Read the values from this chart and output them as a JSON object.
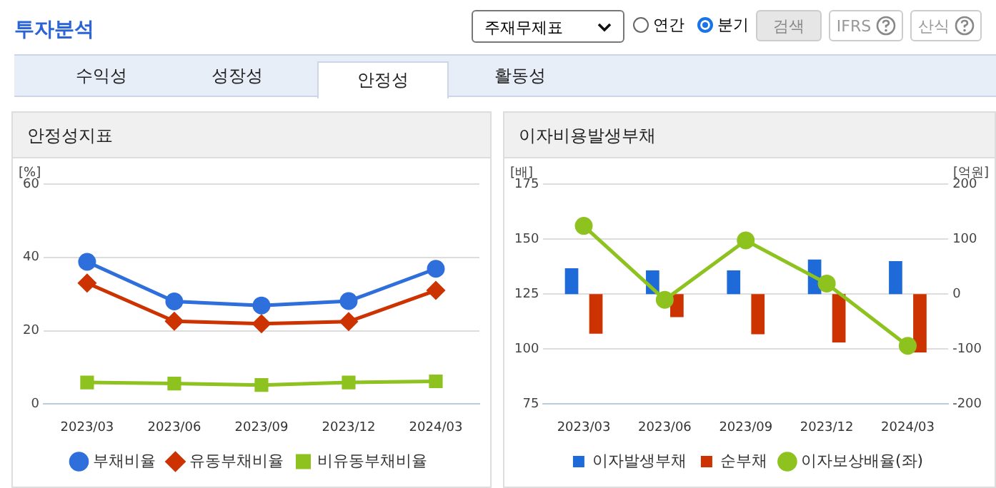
{
  "chart_data": [
    {
      "type": "line",
      "title": "안정성지표",
      "ylabel": "[%]",
      "categories": [
        "2023/03",
        "2023/06",
        "2023/09",
        "2023/12",
        "2024/03"
      ],
      "series": [
        {
          "name": "부채비율",
          "color": "#2f6fdb",
          "marker": "circle",
          "values": [
            38.8,
            28,
            26.9,
            28.1,
            36.9
          ]
        },
        {
          "name": "유동부채비율",
          "color": "#cc3300",
          "marker": "diamond",
          "values": [
            33,
            22.6,
            21.9,
            22.5,
            31
          ]
        },
        {
          "name": "비유동부채비율",
          "color": "#8dc21f",
          "marker": "square",
          "values": [
            5.9,
            5.6,
            5.2,
            5.9,
            6.2
          ]
        }
      ],
      "ylim": [
        0,
        60
      ],
      "yticks": [
        0,
        20,
        40,
        60
      ],
      "grid": "y",
      "legend": "bottom",
      "annotations": [
        "투자분석",
        "주재무제표",
        "연간",
        "분기",
        "검색",
        "IFRS",
        "산식",
        "수익성",
        "성장성",
        "안정성",
        "활동성"
      ]
    },
    {
      "type": "bar",
      "title": "이자비용발생부채",
      "ylabel": "[배]",
      "y2label": "[억원]",
      "categories": [
        "2023/03",
        "2023/06",
        "2023/09",
        "2023/12",
        "2024/03"
      ],
      "series": [
        {
          "name": "이자발생부채",
          "color": "#1f6ad9",
          "axis": "y2",
          "values": [
            47,
            43,
            43,
            63,
            60
          ]
        },
        {
          "name": "순부채",
          "color": "#cc3300",
          "axis": "y2",
          "values": [
            -72,
            -42,
            -73,
            -88,
            -106
          ]
        },
        {
          "name": "이자보상배율(좌)",
          "type": "line",
          "color": "#8dc21f",
          "marker": "circle",
          "values": [
            156,
            122.4,
            149.4,
            129.8,
            101.5
          ]
        }
      ],
      "ylim": [
        75,
        175
      ],
      "yticks": [
        75,
        100,
        125,
        150,
        175
      ],
      "y2lim": [
        -200,
        200
      ],
      "y2ticks": [
        -200,
        -100,
        0,
        100,
        200
      ],
      "grid": "y",
      "legend": "bottom"
    }
  ]
}
